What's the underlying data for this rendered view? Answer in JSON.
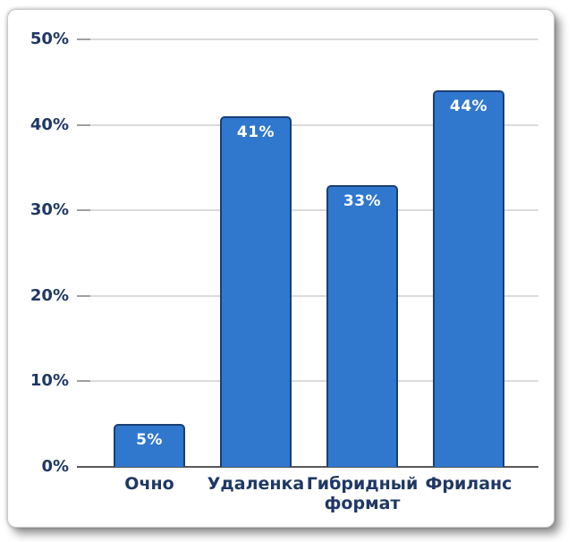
{
  "chart_data": {
    "type": "bar",
    "title": "",
    "xlabel": "",
    "ylabel": "",
    "categories": [
      "Очно",
      "Удаленка",
      "Гибридный формат",
      "Фриланс"
    ],
    "values": [
      5,
      41,
      33,
      44
    ],
    "value_labels": [
      "5%",
      "41%",
      "33%",
      "44%"
    ],
    "ylim": [
      0,
      50
    ],
    "ytick_step": 10,
    "ytick_labels": [
      "0%",
      "10%",
      "20%",
      "30%",
      "40%",
      "50%"
    ],
    "grid": true,
    "legend": false,
    "colors": {
      "bar_fill": "#3077CE",
      "bar_border": "#1B3F74",
      "value_label": "#FFFFFF",
      "axis_label": "#1F3864",
      "gridline": "#DBDBDB",
      "tick": "#A0A0A0",
      "axis_line": "#595959",
      "card_background": "#FFFFFF"
    }
  }
}
